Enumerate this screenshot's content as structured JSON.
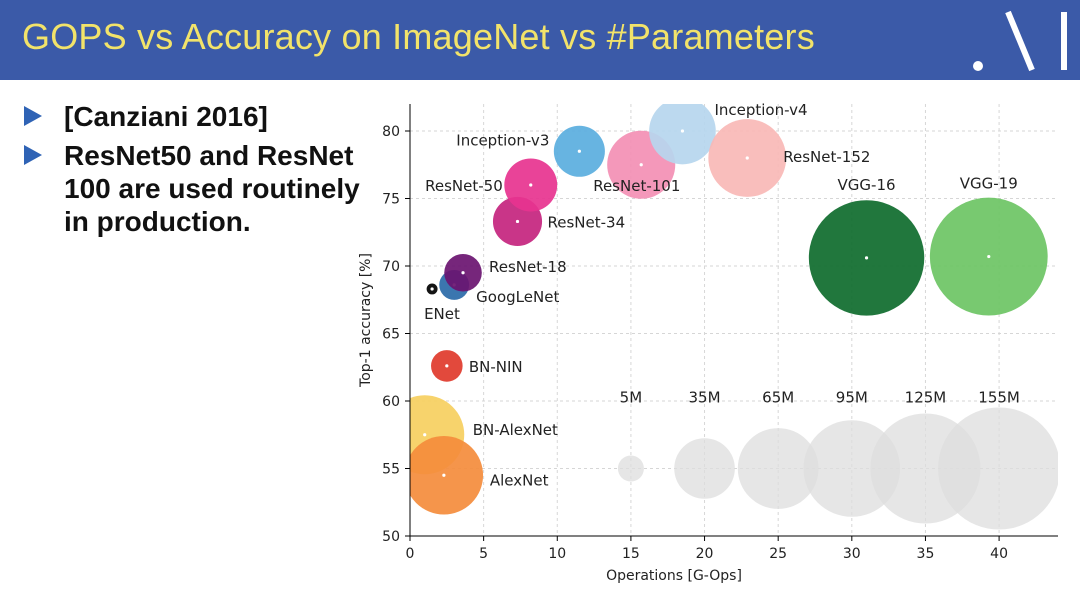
{
  "slide": {
    "title": "GOPS vs Accuracy on ImageNet vs #Parameters",
    "bullets": [
      "[Canziani 2016]",
      "ResNet50 and ResNet 100 are used routinely in production."
    ],
    "header_color": "#3b5aa8",
    "title_color": "#f2e36a"
  },
  "chart_data": {
    "type": "scatter",
    "subtype": "bubble",
    "xlabel": "Operations [G-Ops]",
    "ylabel": "Top-1 accuracy [%]",
    "xlim": [
      0,
      44
    ],
    "ylim": [
      50,
      82
    ],
    "xticks": [
      0,
      5,
      10,
      15,
      20,
      25,
      30,
      35,
      40
    ],
    "yticks": [
      50,
      55,
      60,
      65,
      70,
      75,
      80
    ],
    "grid": true,
    "points": [
      {
        "name": "BN-AlexNet",
        "x": 1.0,
        "y": 57.5,
        "params": 62,
        "color": "#f6cf5f"
      },
      {
        "name": "AlexNet",
        "x": 2.3,
        "y": 54.5,
        "params": 61,
        "color": "#f48c3c"
      },
      {
        "name": "BN-NIN",
        "x": 2.5,
        "y": 62.6,
        "params": 8,
        "color": "#e03a2b"
      },
      {
        "name": "ENet",
        "x": 1.5,
        "y": 68.3,
        "params": 0.4,
        "color": "#000000"
      },
      {
        "name": "GoogLeNet",
        "x": 3.0,
        "y": 68.6,
        "params": 7,
        "color": "#2a6aa8"
      },
      {
        "name": "ResNet-18",
        "x": 3.6,
        "y": 69.5,
        "params": 12,
        "color": "#6a1370"
      },
      {
        "name": "ResNet-34",
        "x": 7.3,
        "y": 73.3,
        "params": 22,
        "color": "#c4247e"
      },
      {
        "name": "ResNet-50",
        "x": 8.2,
        "y": 76.0,
        "params": 26,
        "color": "#e7338f"
      },
      {
        "name": "Inception-v3",
        "x": 11.5,
        "y": 78.5,
        "params": 24,
        "color": "#5aaede"
      },
      {
        "name": "ResNet-101",
        "x": 15.7,
        "y": 77.5,
        "params": 45,
        "color": "#f38fb4"
      },
      {
        "name": "Inception-v4",
        "x": 18.5,
        "y": 80.0,
        "params": 43,
        "color": "#b6d6ee"
      },
      {
        "name": "ResNet-152",
        "x": 22.9,
        "y": 78.0,
        "params": 60,
        "color": "#f8b8b6"
      },
      {
        "name": "VGG-16",
        "x": 31.0,
        "y": 70.6,
        "params": 138,
        "color": "#0e6b2c"
      },
      {
        "name": "VGG-19",
        "x": 39.3,
        "y": 70.7,
        "params": 144,
        "color": "#6cc464"
      }
    ],
    "size_legend": [
      {
        "label": "5M",
        "x": 15,
        "y": 55
      },
      {
        "label": "35M",
        "x": 20,
        "y": 55
      },
      {
        "label": "65M",
        "x": 25,
        "y": 55
      },
      {
        "label": "95M",
        "x": 30,
        "y": 55
      },
      {
        "label": "125M",
        "x": 35,
        "y": 55
      },
      {
        "label": "155M",
        "x": 40,
        "y": 55
      }
    ]
  }
}
